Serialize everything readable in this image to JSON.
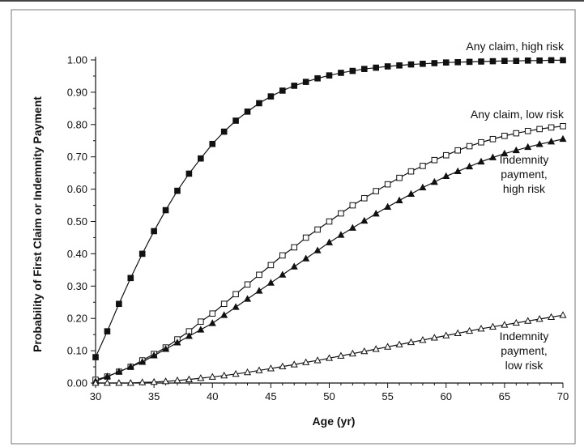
{
  "chart_data": {
    "type": "line",
    "xlabel": "Age (yr)",
    "ylabel": "Probability of First Claim or Indemnity Payment",
    "xlim": [
      30,
      70
    ],
    "ylim": [
      0,
      1
    ],
    "x_ticks": [
      "30",
      "35",
      "40",
      "45",
      "50",
      "55",
      "60",
      "65",
      "70"
    ],
    "y_ticks": [
      "0.00",
      "0.10",
      "0.20",
      "0.30",
      "0.40",
      "0.50",
      "0.60",
      "0.70",
      "0.80",
      "0.90",
      "1.00"
    ],
    "grid": false,
    "x": [
      30,
      31,
      32,
      33,
      34,
      35,
      36,
      37,
      38,
      39,
      40,
      41,
      42,
      43,
      44,
      45,
      46,
      47,
      48,
      49,
      50,
      51,
      52,
      53,
      54,
      55,
      56,
      57,
      58,
      59,
      60,
      61,
      62,
      63,
      64,
      65,
      66,
      67,
      68,
      69,
      70
    ],
    "series": [
      {
        "name": "Any claim, high risk",
        "label_lines": [
          "Any claim, high risk"
        ],
        "marker": "square-filled",
        "values": [
          0.08,
          0.16,
          0.245,
          0.325,
          0.4,
          0.47,
          0.535,
          0.595,
          0.648,
          0.695,
          0.74,
          0.778,
          0.812,
          0.84,
          0.866,
          0.887,
          0.905,
          0.92,
          0.932,
          0.943,
          0.952,
          0.96,
          0.966,
          0.972,
          0.976,
          0.98,
          0.983,
          0.986,
          0.988,
          0.99,
          0.992,
          0.993,
          0.994,
          0.995,
          0.996,
          0.997,
          0.997,
          0.998,
          0.998,
          0.999,
          0.999
        ]
      },
      {
        "name": "Any claim, low risk",
        "label_lines": [
          "Any claim, low risk"
        ],
        "marker": "square-open",
        "values": [
          0.01,
          0.02,
          0.035,
          0.05,
          0.07,
          0.09,
          0.11,
          0.135,
          0.16,
          0.19,
          0.215,
          0.245,
          0.275,
          0.305,
          0.335,
          0.365,
          0.395,
          0.42,
          0.45,
          0.475,
          0.5,
          0.525,
          0.55,
          0.572,
          0.594,
          0.615,
          0.635,
          0.655,
          0.672,
          0.69,
          0.705,
          0.72,
          0.733,
          0.745,
          0.755,
          0.765,
          0.773,
          0.78,
          0.786,
          0.791,
          0.795
        ]
      },
      {
        "name": "Indemnity payment, high risk",
        "label_lines": [
          "Indemnity",
          "payment,",
          "high risk"
        ],
        "marker": "triangle-filled",
        "values": [
          0.005,
          0.02,
          0.035,
          0.05,
          0.065,
          0.085,
          0.105,
          0.125,
          0.145,
          0.165,
          0.185,
          0.21,
          0.235,
          0.26,
          0.285,
          0.31,
          0.335,
          0.36,
          0.385,
          0.41,
          0.435,
          0.458,
          0.48,
          0.502,
          0.524,
          0.545,
          0.565,
          0.585,
          0.605,
          0.622,
          0.64,
          0.655,
          0.67,
          0.685,
          0.698,
          0.71,
          0.72,
          0.73,
          0.739,
          0.747,
          0.755
        ]
      },
      {
        "name": "Indemnity payment, low risk",
        "label_lines": [
          "Indemnity",
          "payment,",
          "low risk"
        ],
        "marker": "triangle-open",
        "values": [
          0.0,
          0.0,
          0.0,
          0.0,
          0.002,
          0.003,
          0.005,
          0.008,
          0.011,
          0.015,
          0.019,
          0.023,
          0.028,
          0.033,
          0.039,
          0.045,
          0.051,
          0.057,
          0.064,
          0.07,
          0.077,
          0.084,
          0.091,
          0.098,
          0.105,
          0.112,
          0.119,
          0.126,
          0.133,
          0.14,
          0.147,
          0.154,
          0.161,
          0.168,
          0.174,
          0.18,
          0.186,
          0.192,
          0.198,
          0.204,
          0.21
        ]
      }
    ]
  }
}
